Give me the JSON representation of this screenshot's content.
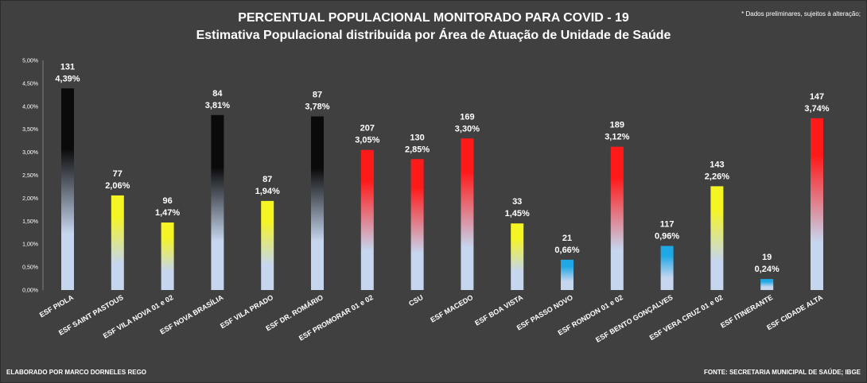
{
  "header": {
    "title": "PERCENTUAL POPULACIONAL MONITORADO PARA COVID - 19",
    "subtitle": "Estimativa Populacional distribuida por Área de Atuação de Unidade de Saúde",
    "note": "* Dados preliminares, sujeitos à alteração;"
  },
  "footer": {
    "left": "ELABORADO POR MARCO DORNELES REGO",
    "right": "FONTE: SECRETARIA MUNICIPAL DE SAÚDE; IBGE"
  },
  "chart_data": {
    "type": "bar",
    "title": "PERCENTUAL POPULACIONAL MONITORADO PARA COVID - 19",
    "subtitle": "Estimativa Populacional distribuida por Área de Atuação de Unidade de Saúde",
    "xlabel": "",
    "ylabel": "",
    "ylim": [
      0,
      5
    ],
    "yticks": [
      "0,00%",
      "0,50%",
      "1,00%",
      "1,50%",
      "2,00%",
      "2,50%",
      "3,00%",
      "3,50%",
      "4,00%",
      "4,50%",
      "5,00%"
    ],
    "grid": false,
    "legend": "none",
    "categories": [
      "ESF PIOLA",
      "ESF SAINT PASTOUS",
      "ESF VILA NOVA 01 e 02",
      "ESF NOVA BRASÍLIA",
      "ESF VILA PRADO",
      "ESF DR. ROMÁRIO",
      "ESF PROMORAR 01 e 02",
      "CSU",
      "ESF MACEDO",
      "ESF BOA VISTA",
      "ESF PASSO NOVO",
      "ESF RONDON 01 e 02",
      "ESF BENTO GONÇALVES",
      "ESF VERA CRUZ 01 e 02",
      "ESF ITINERANTE",
      "ESF CIDADE ALTA"
    ],
    "values": [
      4.39,
      2.06,
      1.47,
      3.81,
      1.94,
      3.78,
      3.05,
      2.85,
      3.3,
      1.45,
      0.66,
      3.12,
      0.96,
      2.26,
      0.24,
      3.74
    ],
    "value_labels": [
      "4,39%",
      "2,06%",
      "1,47%",
      "3,81%",
      "1,94%",
      "3,78%",
      "3,05%",
      "2,85%",
      "3,30%",
      "1,45%",
      "0,66%",
      "3,12%",
      "0,96%",
      "2,26%",
      "0,24%",
      "3,74%"
    ],
    "counts": [
      "131",
      "77",
      "96",
      "84",
      "87",
      "87",
      "207",
      "130",
      "169",
      "33",
      "21",
      "189",
      "117",
      "143",
      "19",
      "147"
    ],
    "bar_colors": [
      "black",
      "yellow",
      "yellow",
      "black",
      "yellow",
      "black",
      "red",
      "red",
      "red",
      "yellow",
      "blue",
      "red",
      "blue",
      "yellow",
      "blue",
      "red"
    ],
    "palette": {
      "black": "#0a0a0a",
      "yellow": "#f5f523",
      "red": "#ff1a1a",
      "blue": "#1ea8e6",
      "light": "#c6d6ee"
    }
  }
}
